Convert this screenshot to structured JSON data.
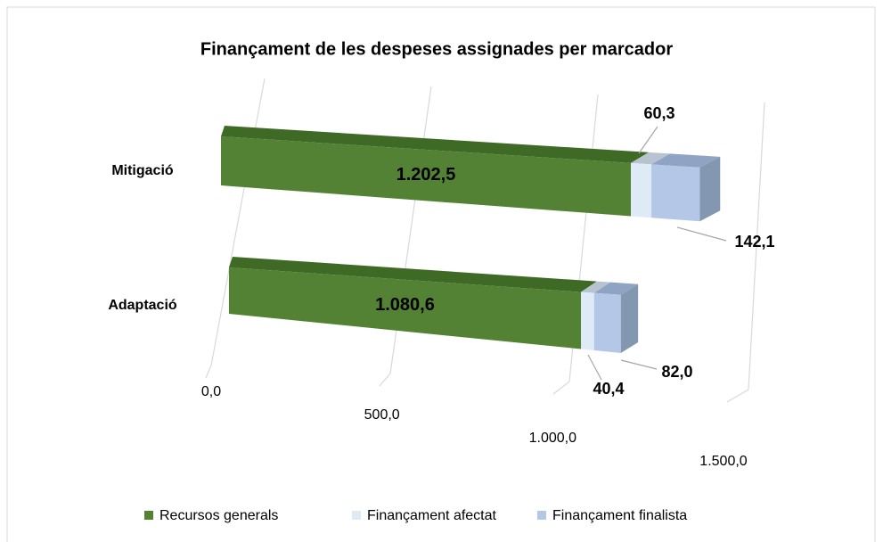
{
  "chart_data": {
    "type": "bar3d_stacked_horizontal",
    "title": "Finançament de les despeses assignades per marcador",
    "categories": [
      "Mitigació",
      "Adaptació"
    ],
    "series": [
      {
        "name": "Recursos generals",
        "color": "#548235",
        "values": [
          1202.5,
          1080.6
        ],
        "value_labels": [
          "1.202,5",
          "1.080,6"
        ]
      },
      {
        "name": "Finançament afectat",
        "color": "#deebf7",
        "values": [
          60.3,
          40.4
        ],
        "value_labels": [
          "60,3",
          "40,4"
        ]
      },
      {
        "name": "Finançament finalista",
        "color": "#b4c7e7",
        "values": [
          142.1,
          82.0
        ],
        "value_labels": [
          "142,1",
          "82,0"
        ]
      }
    ],
    "xlim": [
      0,
      1500
    ],
    "xticks": [
      {
        "value": 0,
        "label": "0,0"
      },
      {
        "value": 500,
        "label": "500,0"
      },
      {
        "value": 1000,
        "label": "1.000,0"
      },
      {
        "value": 1500,
        "label": "1.500,0"
      }
    ],
    "grid": true,
    "legend": "bottom"
  }
}
